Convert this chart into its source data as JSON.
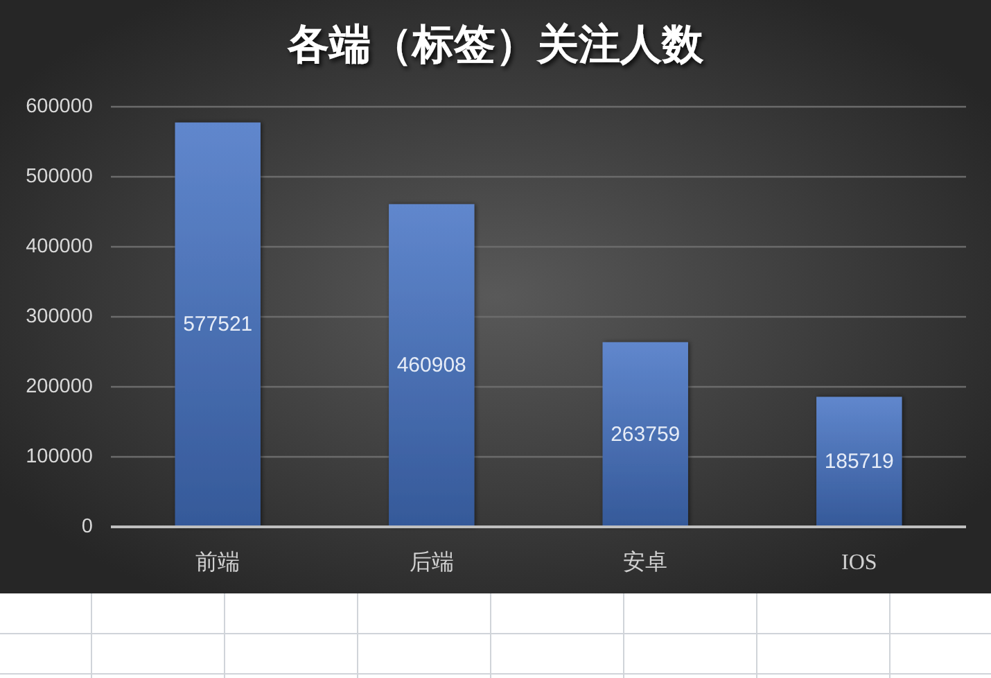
{
  "chart_data": {
    "type": "bar",
    "title": "各端（标签）关注人数",
    "categories": [
      "前端",
      "后端",
      "安卓",
      "IOS"
    ],
    "values": [
      577521,
      460908,
      263759,
      185719
    ],
    "color": "#4472c4",
    "ylim": [
      0,
      600000
    ],
    "yticks": [
      0,
      100000,
      200000,
      300000,
      400000,
      500000,
      600000
    ],
    "grid": "y",
    "data_labels": true
  }
}
